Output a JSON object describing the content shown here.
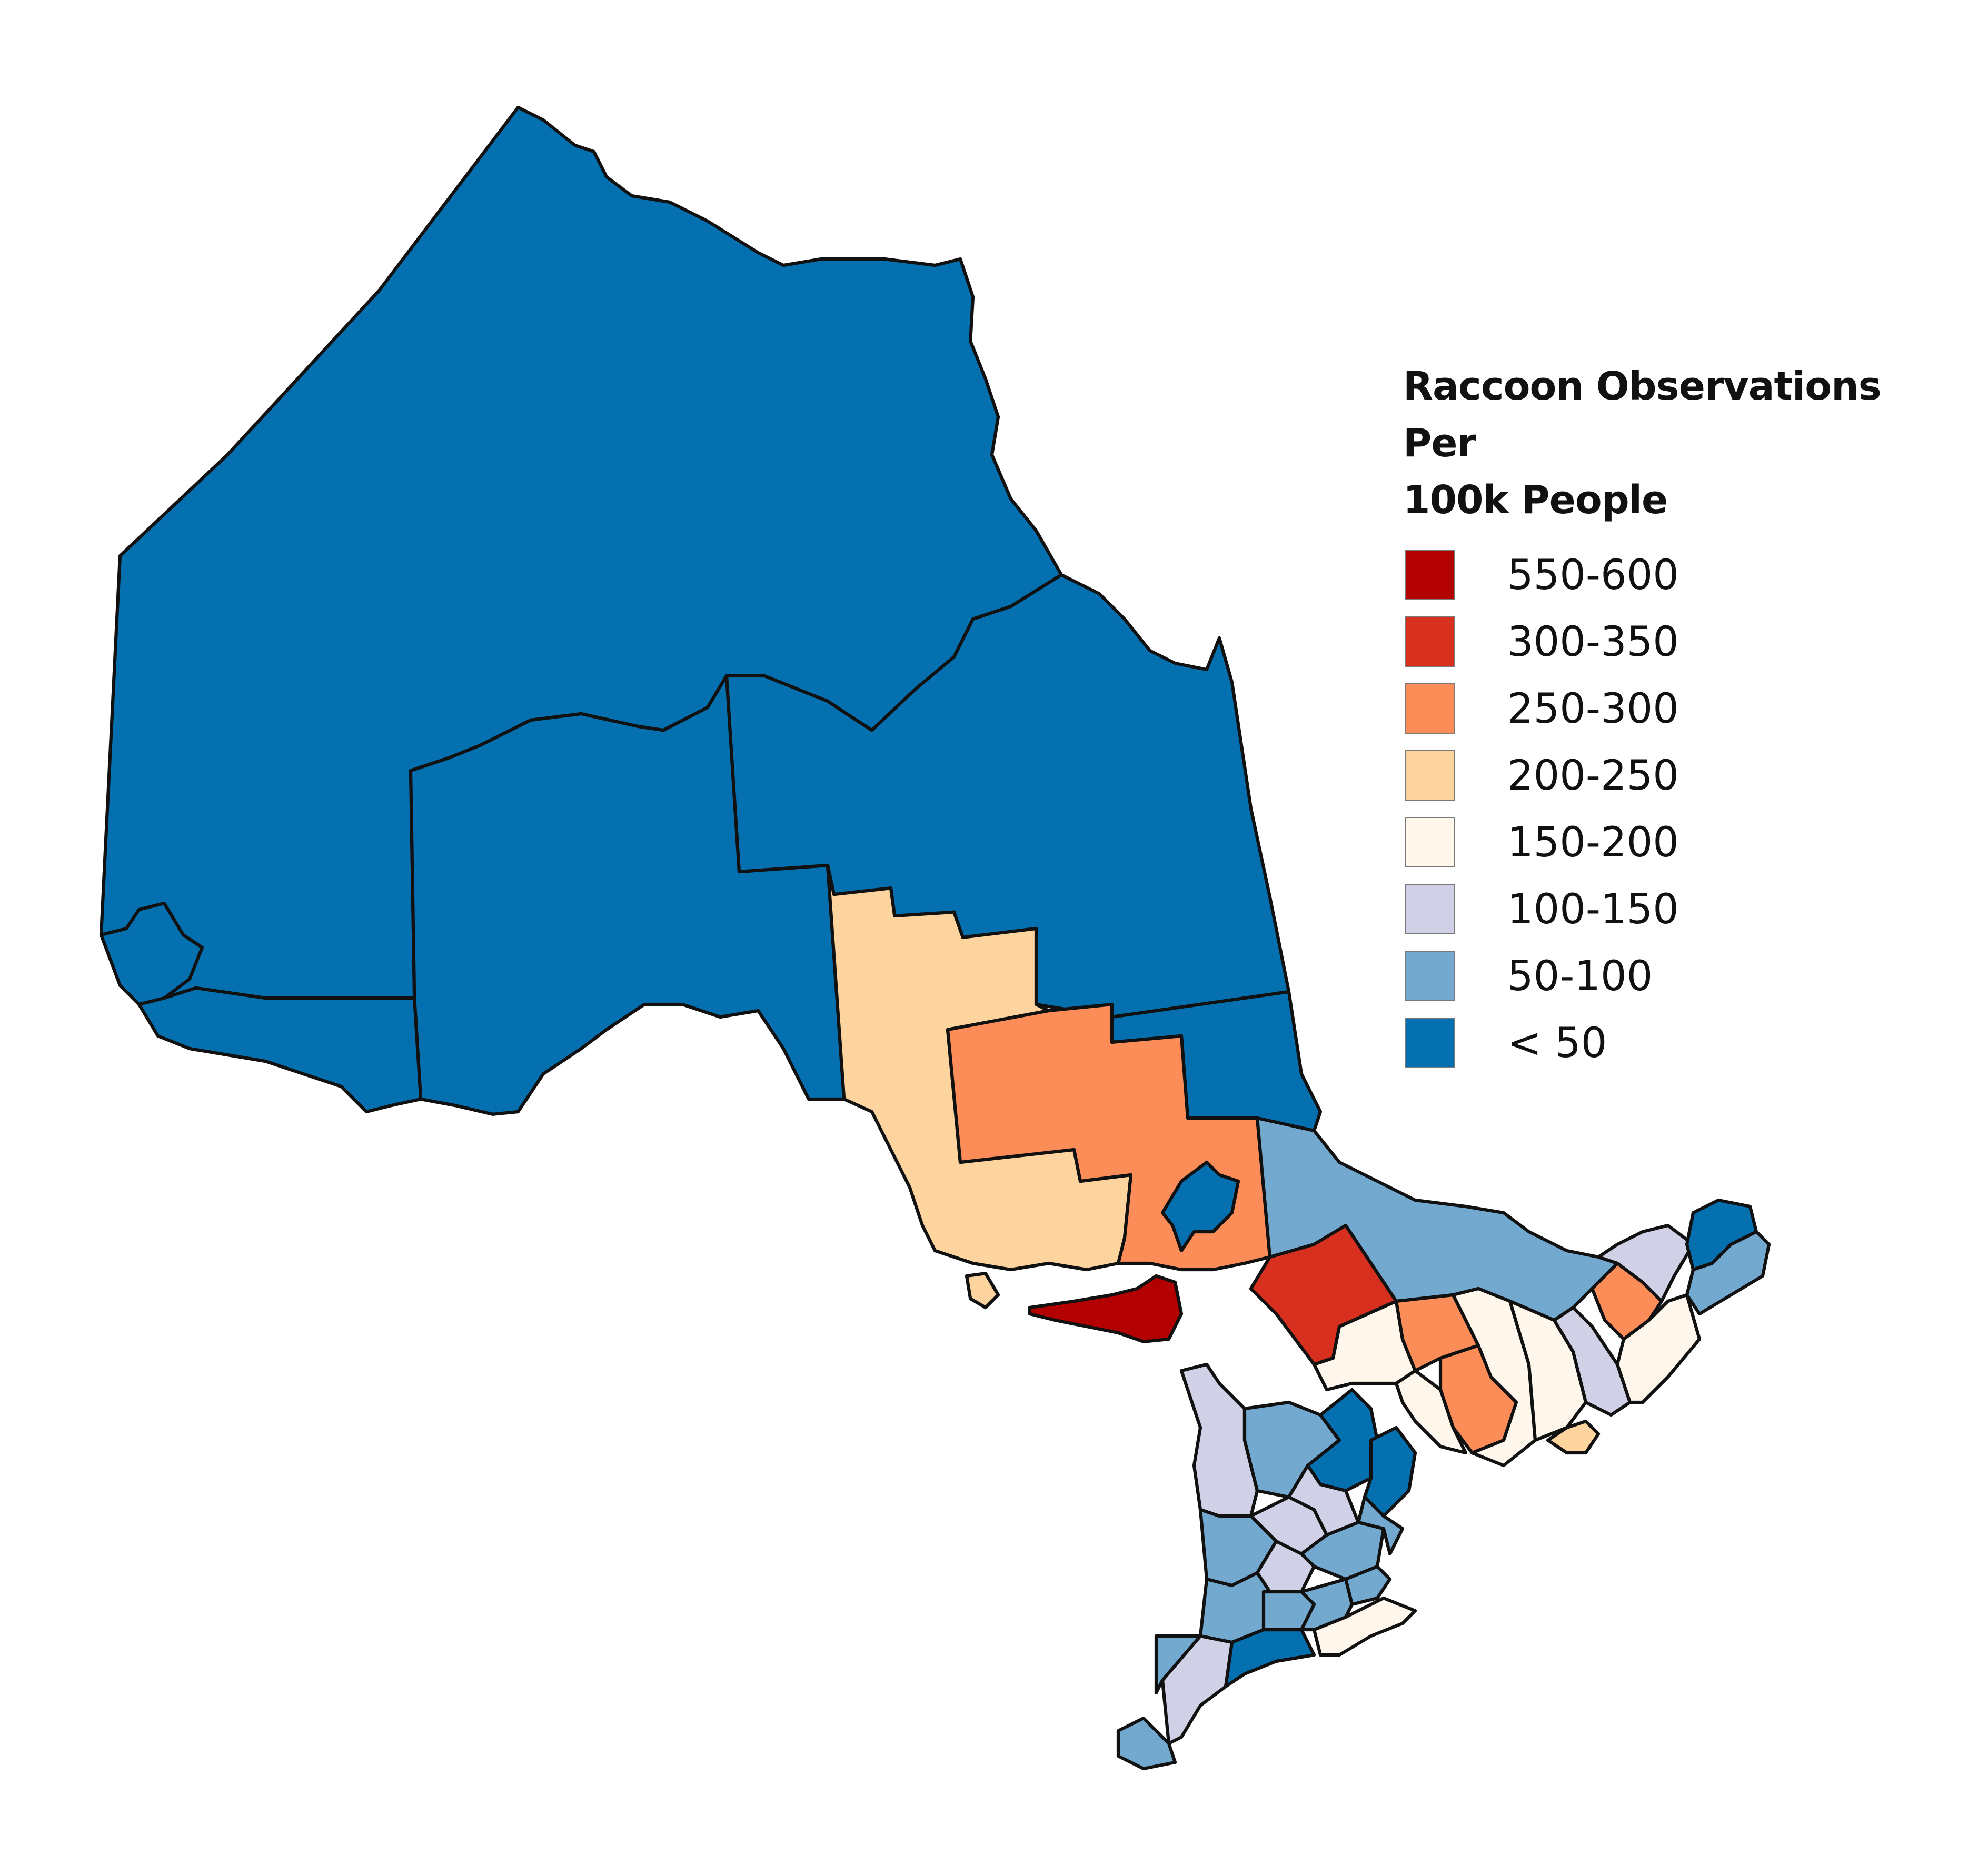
{
  "legend": {
    "title": "Raccoon Observations Per\n100k People",
    "classes": [
      {
        "label": "550-600",
        "color": "#b30000"
      },
      {
        "label": "300-350",
        "color": "#d7301f"
      },
      {
        "label": "250-300",
        "color": "#fc8d59"
      },
      {
        "label": "200-250",
        "color": "#fdd49e"
      },
      {
        "label": "150-200",
        "color": "#fff7ec"
      },
      {
        "label": "100-150",
        "color": "#d0d1e6"
      },
      {
        "label": "50-100",
        "color": "#74a9cf"
      },
      {
        "label": "< 50",
        "color": "#0570b0"
      }
    ]
  },
  "map": {
    "regions": [
      {
        "class": "< 50"
      },
      {
        "class": "< 50"
      },
      {
        "class": "< 50"
      },
      {
        "class": "< 50"
      },
      {
        "class": "< 50"
      },
      {
        "class": "< 50"
      },
      {
        "class": "200-250"
      },
      {
        "class": "250-300"
      },
      {
        "class": "< 50"
      },
      {
        "class": "50-100"
      },
      {
        "class": "300-350"
      },
      {
        "class": "550-600"
      },
      {
        "class": "200-250"
      },
      {
        "class": "150-200"
      },
      {
        "class": "250-300"
      },
      {
        "class": "150-200"
      },
      {
        "class": "250-300"
      },
      {
        "class": "150-200"
      },
      {
        "class": "150-200"
      },
      {
        "class": "100-150"
      },
      {
        "class": "250-300"
      },
      {
        "class": "150-200"
      },
      {
        "class": "100-150"
      },
      {
        "class": "< 50"
      },
      {
        "class": "50-100"
      },
      {
        "class": "200-250"
      },
      {
        "class": "100-150"
      },
      {
        "class": "50-100"
      },
      {
        "class": "< 50"
      },
      {
        "class": "< 50"
      },
      {
        "class": "100-150"
      },
      {
        "class": "50-100"
      },
      {
        "class": "50-100"
      },
      {
        "class": "100-150"
      },
      {
        "class": "50-100"
      },
      {
        "class": "50-100"
      },
      {
        "class": "150-200"
      },
      {
        "class": "< 50"
      },
      {
        "class": "100-150"
      },
      {
        "class": "50-100"
      },
      {
        "class": "50-100"
      },
      {
        "class": "50-100"
      },
      {
        "class": "50-100"
      },
      {
        "class": "100-150"
      },
      {
        "class": "50-100"
      }
    ]
  }
}
